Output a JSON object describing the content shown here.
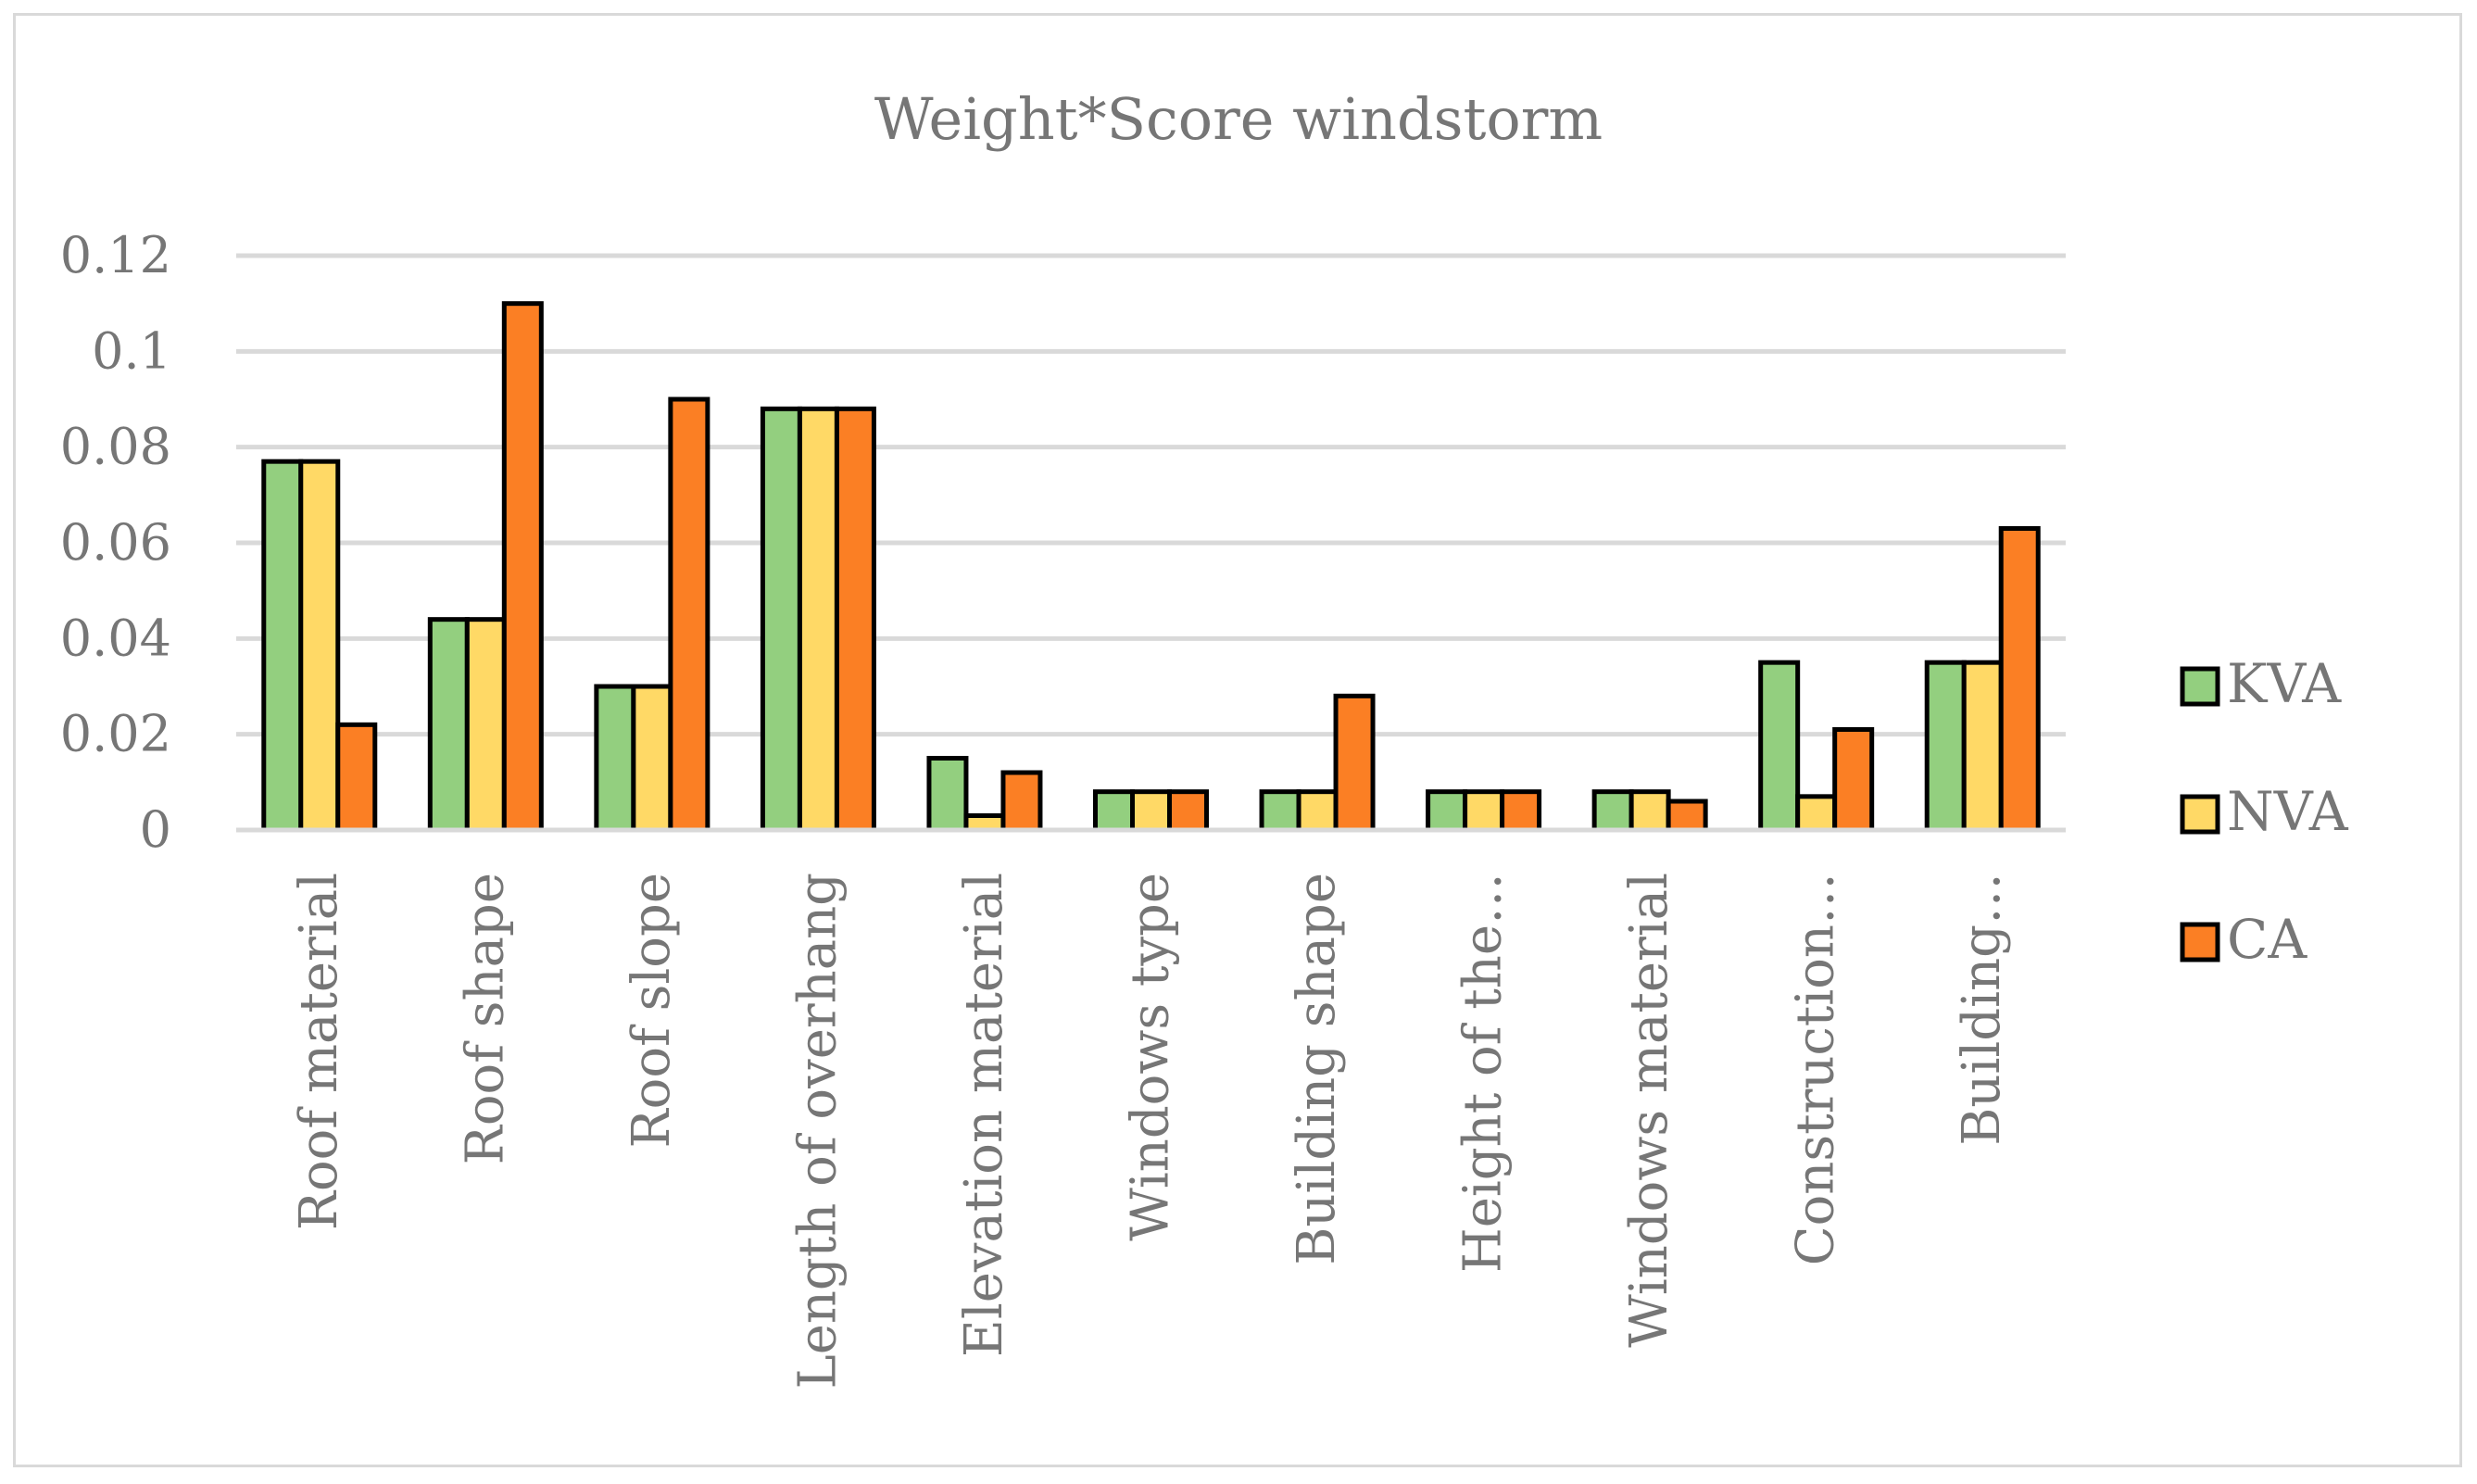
{
  "chart_data": {
    "type": "bar",
    "title": "Weight*Score windstorm",
    "categories": [
      "Roof material",
      "Roof shape",
      "Roof slope",
      "Length of overhang",
      "Elevation material",
      "Windows type",
      "Building shape",
      "Height of the…",
      "Windows material",
      "Construction…",
      "Building…"
    ],
    "series": [
      {
        "name": "KVA",
        "color": "#93cf7f",
        "values": [
          0.077,
          0.044,
          0.03,
          0.088,
          0.015,
          0.008,
          0.008,
          0.008,
          0.008,
          0.035,
          0.035
        ]
      },
      {
        "name": "NVA",
        "color": "#ffd966",
        "values": [
          0.077,
          0.044,
          0.03,
          0.088,
          0.003,
          0.008,
          0.008,
          0.008,
          0.008,
          0.007,
          0.035
        ]
      },
      {
        "name": "CA",
        "color": "#fb7f24",
        "values": [
          0.022,
          0.11,
          0.09,
          0.088,
          0.012,
          0.008,
          0.028,
          0.008,
          0.006,
          0.021,
          0.063
        ]
      }
    ],
    "yticks": [
      "0",
      "0.02",
      "0.04",
      "0.06",
      "0.08",
      "0.1",
      "0.12"
    ],
    "ylim": [
      0,
      0.12
    ],
    "grid": true,
    "legend": "right"
  }
}
